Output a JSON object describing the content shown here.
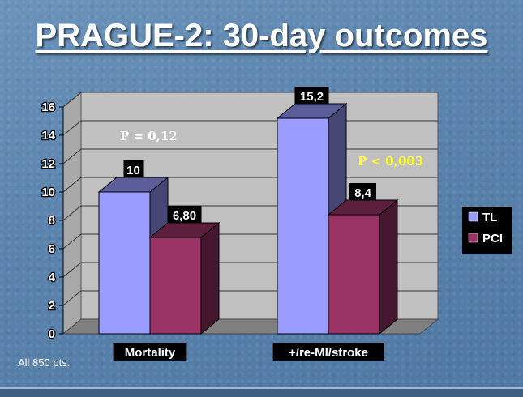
{
  "slide": {
    "title": "PRAGUE-2: 30-day outcomes",
    "footnote": "All 850 pts."
  },
  "colors": {
    "TL": "#9a9cff",
    "PCI": "#993366",
    "p1": "#ffffff",
    "p2": "#ffff33"
  },
  "chart_data": {
    "type": "bar",
    "categories": [
      "Mortality",
      "+/re-MI/stroke"
    ],
    "series": [
      {
        "name": "TL",
        "values": [
          10,
          15.2
        ],
        "labels": [
          "10",
          "15,2"
        ]
      },
      {
        "name": "PCI",
        "values": [
          6.8,
          8.4
        ],
        "labels": [
          "6,80",
          "8,4"
        ]
      }
    ],
    "ylim": [
      0,
      16
    ],
    "yticks": [
      0,
      2,
      4,
      6,
      8,
      10,
      12,
      14,
      16
    ],
    "grid": true,
    "legend": "right",
    "annotations": [
      "P = 0,12",
      "P < 0,003"
    ]
  }
}
